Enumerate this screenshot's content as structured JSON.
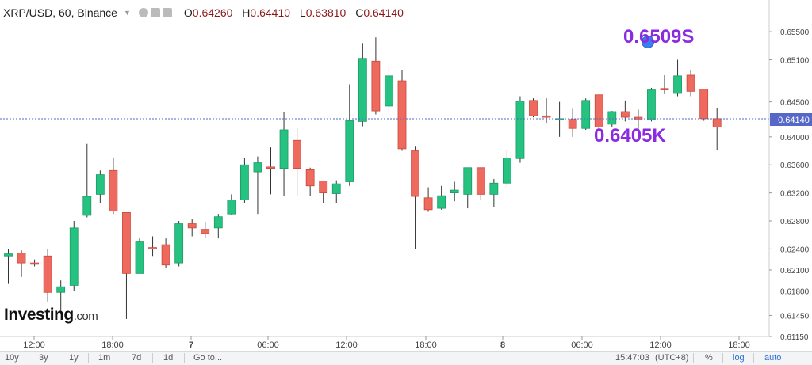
{
  "header": {
    "symbol": "XRP/USD, 60, Binance",
    "ohlc": {
      "o_label": "O",
      "o": "0.64260",
      "h_label": "H",
      "h": "0.64410",
      "l_label": "L",
      "l": "0.63810",
      "c_label": "C",
      "c": "0.64140"
    }
  },
  "chart_data": {
    "type": "candlestick",
    "ylim": [
      0.6115,
      0.6575
    ],
    "y_ticks": [
      "0.65500",
      "0.65100",
      "0.64500",
      "0.64000",
      "0.63600",
      "0.63200",
      "0.62800",
      "0.62400",
      "0.62100",
      "0.61800",
      "0.61450",
      "0.61150"
    ],
    "x_ticks": [
      "12:00",
      "18:00",
      "7",
      "06:00",
      "12:00",
      "18:00",
      "8",
      "06:00",
      "12:00",
      "18:00"
    ],
    "last_price": "0.64140",
    "candles": [
      {
        "o": 0.623,
        "h": 0.624,
        "l": 0.619,
        "c": 0.6233
      },
      {
        "o": 0.6234,
        "h": 0.6238,
        "l": 0.62,
        "c": 0.622
      },
      {
        "o": 0.622,
        "h": 0.6225,
        "l": 0.6215,
        "c": 0.6218
      },
      {
        "o": 0.623,
        "h": 0.624,
        "l": 0.6165,
        "c": 0.6178
      },
      {
        "o": 0.6178,
        "h": 0.6195,
        "l": 0.615,
        "c": 0.6186
      },
      {
        "o": 0.6188,
        "h": 0.628,
        "l": 0.618,
        "c": 0.627
      },
      {
        "o": 0.6288,
        "h": 0.639,
        "l": 0.6285,
        "c": 0.6315
      },
      {
        "o": 0.6318,
        "h": 0.6352,
        "l": 0.6305,
        "c": 0.6346
      },
      {
        "o": 0.6352,
        "h": 0.637,
        "l": 0.629,
        "c": 0.6294
      },
      {
        "o": 0.6292,
        "h": 0.6292,
        "l": 0.614,
        "c": 0.6205
      },
      {
        "o": 0.6205,
        "h": 0.6255,
        "l": 0.6205,
        "c": 0.625
      },
      {
        "o": 0.6242,
        "h": 0.6258,
        "l": 0.623,
        "c": 0.624
      },
      {
        "o": 0.6246,
        "h": 0.6255,
        "l": 0.6213,
        "c": 0.6217
      },
      {
        "o": 0.622,
        "h": 0.628,
        "l": 0.6215,
        "c": 0.6276
      },
      {
        "o": 0.6276,
        "h": 0.6283,
        "l": 0.6258,
        "c": 0.627
      },
      {
        "o": 0.6268,
        "h": 0.6278,
        "l": 0.6256,
        "c": 0.6262
      },
      {
        "o": 0.627,
        "h": 0.629,
        "l": 0.6255,
        "c": 0.6286
      },
      {
        "o": 0.629,
        "h": 0.6318,
        "l": 0.6288,
        "c": 0.631
      },
      {
        "o": 0.631,
        "h": 0.637,
        "l": 0.6305,
        "c": 0.636
      },
      {
        "o": 0.635,
        "h": 0.6372,
        "l": 0.629,
        "c": 0.6363
      },
      {
        "o": 0.6357,
        "h": 0.6385,
        "l": 0.6318,
        "c": 0.6355
      },
      {
        "o": 0.6355,
        "h": 0.6436,
        "l": 0.6315,
        "c": 0.641
      },
      {
        "o": 0.6395,
        "h": 0.6412,
        "l": 0.6315,
        "c": 0.6355
      },
      {
        "o": 0.6353,
        "h": 0.6356,
        "l": 0.6316,
        "c": 0.633
      },
      {
        "o": 0.6337,
        "h": 0.6337,
        "l": 0.6305,
        "c": 0.632
      },
      {
        "o": 0.6319,
        "h": 0.6338,
        "l": 0.6306,
        "c": 0.6333
      },
      {
        "o": 0.6336,
        "h": 0.6475,
        "l": 0.633,
        "c": 0.6423
      },
      {
        "o": 0.6422,
        "h": 0.6534,
        "l": 0.6415,
        "c": 0.6512
      },
      {
        "o": 0.6508,
        "h": 0.6542,
        "l": 0.6432,
        "c": 0.6437
      },
      {
        "o": 0.6444,
        "h": 0.65,
        "l": 0.6435,
        "c": 0.6487
      },
      {
        "o": 0.648,
        "h": 0.6495,
        "l": 0.638,
        "c": 0.6383
      },
      {
        "o": 0.638,
        "h": 0.6386,
        "l": 0.624,
        "c": 0.6315
      },
      {
        "o": 0.6313,
        "h": 0.6328,
        "l": 0.6293,
        "c": 0.6296
      },
      {
        "o": 0.6298,
        "h": 0.633,
        "l": 0.6296,
        "c": 0.6316
      },
      {
        "o": 0.632,
        "h": 0.6336,
        "l": 0.6308,
        "c": 0.6324
      },
      {
        "o": 0.6318,
        "h": 0.6356,
        "l": 0.6298,
        "c": 0.6356
      },
      {
        "o": 0.6356,
        "h": 0.6356,
        "l": 0.631,
        "c": 0.6318
      },
      {
        "o": 0.6318,
        "h": 0.634,
        "l": 0.63,
        "c": 0.6334
      },
      {
        "o": 0.6334,
        "h": 0.638,
        "l": 0.633,
        "c": 0.637
      },
      {
        "o": 0.6369,
        "h": 0.6458,
        "l": 0.6363,
        "c": 0.6451
      },
      {
        "o": 0.6452,
        "h": 0.6455,
        "l": 0.6428,
        "c": 0.643
      },
      {
        "o": 0.643,
        "h": 0.6455,
        "l": 0.642,
        "c": 0.6428
      },
      {
        "o": 0.6424,
        "h": 0.645,
        "l": 0.64,
        "c": 0.6426
      },
      {
        "o": 0.6425,
        "h": 0.644,
        "l": 0.64,
        "c": 0.6412
      },
      {
        "o": 0.6412,
        "h": 0.6455,
        "l": 0.641,
        "c": 0.6452
      },
      {
        "o": 0.646,
        "h": 0.646,
        "l": 0.641,
        "c": 0.6414
      },
      {
        "o": 0.6418,
        "h": 0.6437,
        "l": 0.6414,
        "c": 0.6436
      },
      {
        "o": 0.6436,
        "h": 0.6452,
        "l": 0.6422,
        "c": 0.6428
      },
      {
        "o": 0.6428,
        "h": 0.6439,
        "l": 0.6409,
        "c": 0.6424
      },
      {
        "o": 0.6424,
        "h": 0.647,
        "l": 0.6422,
        "c": 0.6467
      },
      {
        "o": 0.6469,
        "h": 0.6488,
        "l": 0.6461,
        "c": 0.6467
      },
      {
        "o": 0.6462,
        "h": 0.651,
        "l": 0.6458,
        "c": 0.6487
      },
      {
        "o": 0.6488,
        "h": 0.6495,
        "l": 0.6458,
        "c": 0.6465
      },
      {
        "o": 0.6468,
        "h": 0.6468,
        "l": 0.6423,
        "c": 0.6426
      },
      {
        "o": 0.6426,
        "h": 0.6441,
        "l": 0.6381,
        "c": 0.6414
      }
    ],
    "annotations": [
      "0.6509S",
      "0.6405K"
    ]
  },
  "logo": {
    "brand": "Investing",
    "suffix": ".com"
  },
  "bottom": {
    "timeframes": [
      "10y",
      "3y",
      "1y",
      "1m",
      "7d",
      "1d"
    ],
    "goto": "Go to...",
    "time": "15:47:03",
    "tz": "(UTC+8)",
    "pct": "%",
    "log": "log",
    "auto": "auto"
  },
  "colors": {
    "up": "#26c281",
    "down": "#ef6a5e",
    "line": "#5568c7",
    "note": "#8a2be2"
  }
}
